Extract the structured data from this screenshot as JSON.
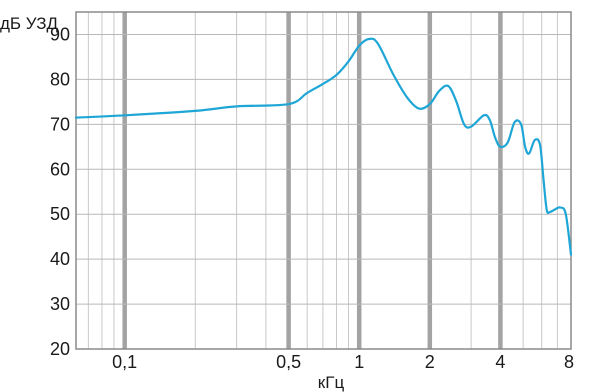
{
  "chart_data": {
    "type": "line",
    "title": "",
    "xlabel": "кГц",
    "ylabel": "дБ УЗД",
    "x_scale": "log",
    "xlim": [
      0.062,
      8
    ],
    "ylim": [
      20,
      95
    ],
    "grid": true,
    "x_ticks": [
      0.1,
      0.5,
      1,
      2,
      4,
      8
    ],
    "x_tick_labels": [
      "0,1",
      "0,5",
      "1",
      "2",
      "4",
      "8"
    ],
    "y_ticks": [
      20,
      30,
      40,
      50,
      60,
      70,
      80,
      90
    ],
    "y_tick_labels": [
      "20",
      "30",
      "40",
      "50",
      "60",
      "70",
      "80",
      "90"
    ],
    "line_color": "#1ea6d6",
    "series": [
      {
        "x": [
          0.062,
          0.1,
          0.2,
          0.3,
          0.5,
          0.6,
          0.7,
          0.8,
          0.9,
          1.0,
          1.1,
          1.2,
          1.4,
          1.6,
          1.8,
          2.0,
          2.2,
          2.4,
          2.6,
          2.8,
          3.0,
          3.4,
          3.6,
          3.8,
          4.0,
          4.3,
          4.6,
          4.9,
          5.1,
          5.3,
          5.6,
          5.9,
          6.1,
          6.3,
          6.5,
          6.8,
          7.2,
          7.6,
          8.0
        ],
        "y": [
          71.5,
          72,
          73,
          74,
          74.5,
          77,
          79,
          81,
          84,
          87.5,
          89,
          88,
          81,
          76,
          73.5,
          74.5,
          77.5,
          78.5,
          75,
          70,
          69.5,
          72,
          71,
          67,
          65,
          66,
          70.5,
          70,
          65,
          63.5,
          66.5,
          65.5,
          58,
          51,
          50.5,
          51,
          51.5,
          50,
          41
        ]
      }
    ]
  }
}
